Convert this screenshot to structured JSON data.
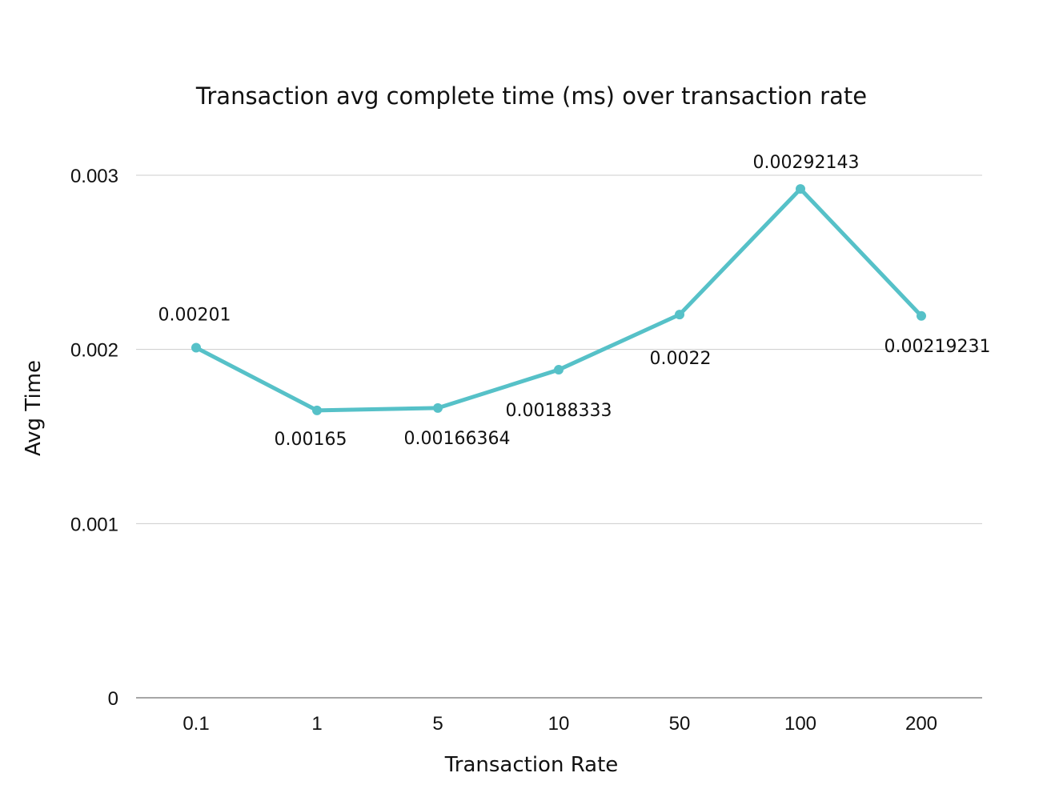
{
  "chart_data": {
    "type": "line",
    "title": "Transaction avg complete time (ms) over transaction rate",
    "xlabel": "Transaction Rate",
    "ylabel": "Avg Time",
    "categories": [
      "0.1",
      "1",
      "5",
      "10",
      "50",
      "100",
      "200"
    ],
    "series": [
      {
        "values": [
          0.00201,
          0.00165,
          0.00166364,
          0.00188333,
          0.0022,
          0.00292143,
          0.00219231
        ],
        "labels": [
          "0.00201",
          "0.00165",
          "0.00166364",
          "0.00188333",
          "0.0022",
          "0.00292143",
          "0.00219231"
        ],
        "color": "#56c1c8"
      }
    ],
    "ylim": [
      0,
      0.003
    ],
    "yticks": [
      "0",
      "0.001",
      "0.002",
      "0.003"
    ],
    "grid": true,
    "legend": "none"
  }
}
